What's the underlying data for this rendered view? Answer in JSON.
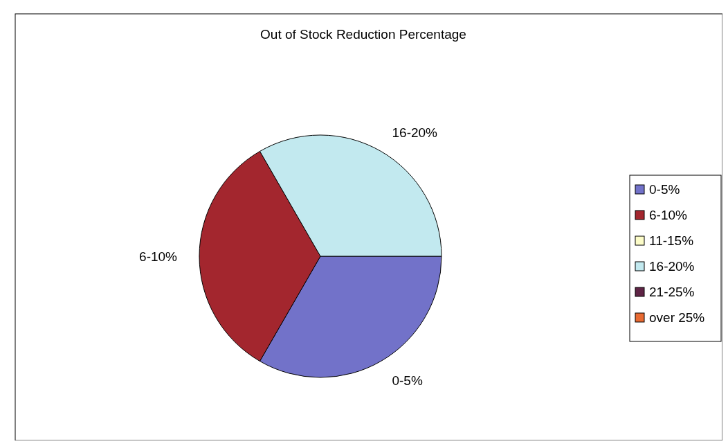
{
  "chart_data": {
    "type": "pie",
    "title": "Out of Stock Reduction Percentage",
    "categories": [
      "0-5%",
      "6-10%",
      "11-15%",
      "16-20%",
      "21-25%",
      "over 25%"
    ],
    "values": [
      33.34,
      33.33,
      0,
      33.33,
      0,
      0
    ],
    "colors": [
      "#7272c9",
      "#a3262e",
      "#fcfcc8",
      "#c2e9ef",
      "#5e2445",
      "#e86a32"
    ],
    "legend": "right"
  }
}
